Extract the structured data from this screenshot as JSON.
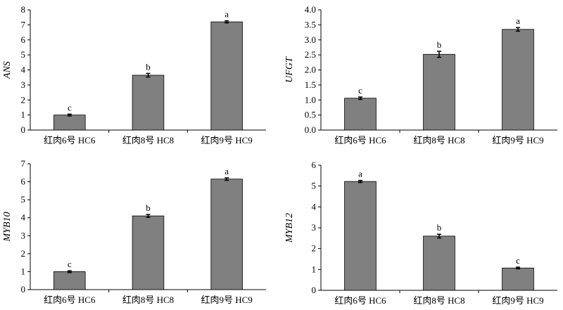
{
  "chart_data": [
    {
      "type": "bar",
      "ylabel": "ANS",
      "categories": [
        "红肉6号 HC6",
        "红肉8号 HC8",
        "红肉9号 HC9"
      ],
      "values": [
        1.0,
        3.65,
        7.2
      ],
      "errors": [
        0.06,
        0.12,
        0.07
      ],
      "significance": [
        "c",
        "b",
        "a"
      ],
      "ylim": [
        0,
        8
      ],
      "yticks": [
        "0",
        "1",
        "2",
        "3",
        "4",
        "5",
        "6",
        "7",
        "8"
      ],
      "color": "#808080"
    },
    {
      "type": "bar",
      "ylabel": "UFGT",
      "categories": [
        "红肉6号 HC6",
        "红肉8号 HC8",
        "红肉9号 HC9"
      ],
      "values": [
        1.06,
        2.52,
        3.35
      ],
      "errors": [
        0.04,
        0.1,
        0.06
      ],
      "significance": [
        "c",
        "b",
        "a"
      ],
      "ylim": [
        0,
        4
      ],
      "yticks": [
        "0.0",
        "0.5",
        "1.0",
        "1.5",
        "2.0",
        "2.5",
        "3.0",
        "3.5",
        "4.0"
      ],
      "color": "#808080"
    },
    {
      "type": "bar",
      "ylabel": "MYB10",
      "categories": [
        "红肉6号 HC6",
        "红肉8号 HC8",
        "红肉9号 HC9"
      ],
      "values": [
        1.0,
        4.1,
        6.15
      ],
      "errors": [
        0.05,
        0.08,
        0.07
      ],
      "significance": [
        "c",
        "b",
        "a"
      ],
      "ylim": [
        0,
        7
      ],
      "yticks": [
        "0",
        "1",
        "2",
        "3",
        "4",
        "5",
        "6",
        "7"
      ],
      "color": "#808080"
    },
    {
      "type": "bar",
      "ylabel": "MYB12",
      "categories": [
        "红肉6号 HC6",
        "红肉8号 HC8",
        "红肉9号 HC9"
      ],
      "values": [
        5.22,
        2.6,
        1.07
      ],
      "errors": [
        0.05,
        0.09,
        0.04
      ],
      "significance": [
        "a",
        "b",
        "c"
      ],
      "ylim": [
        0,
        6
      ],
      "yticks": [
        "0",
        "1",
        "2",
        "3",
        "4",
        "5",
        "6"
      ],
      "color": "#808080"
    }
  ]
}
